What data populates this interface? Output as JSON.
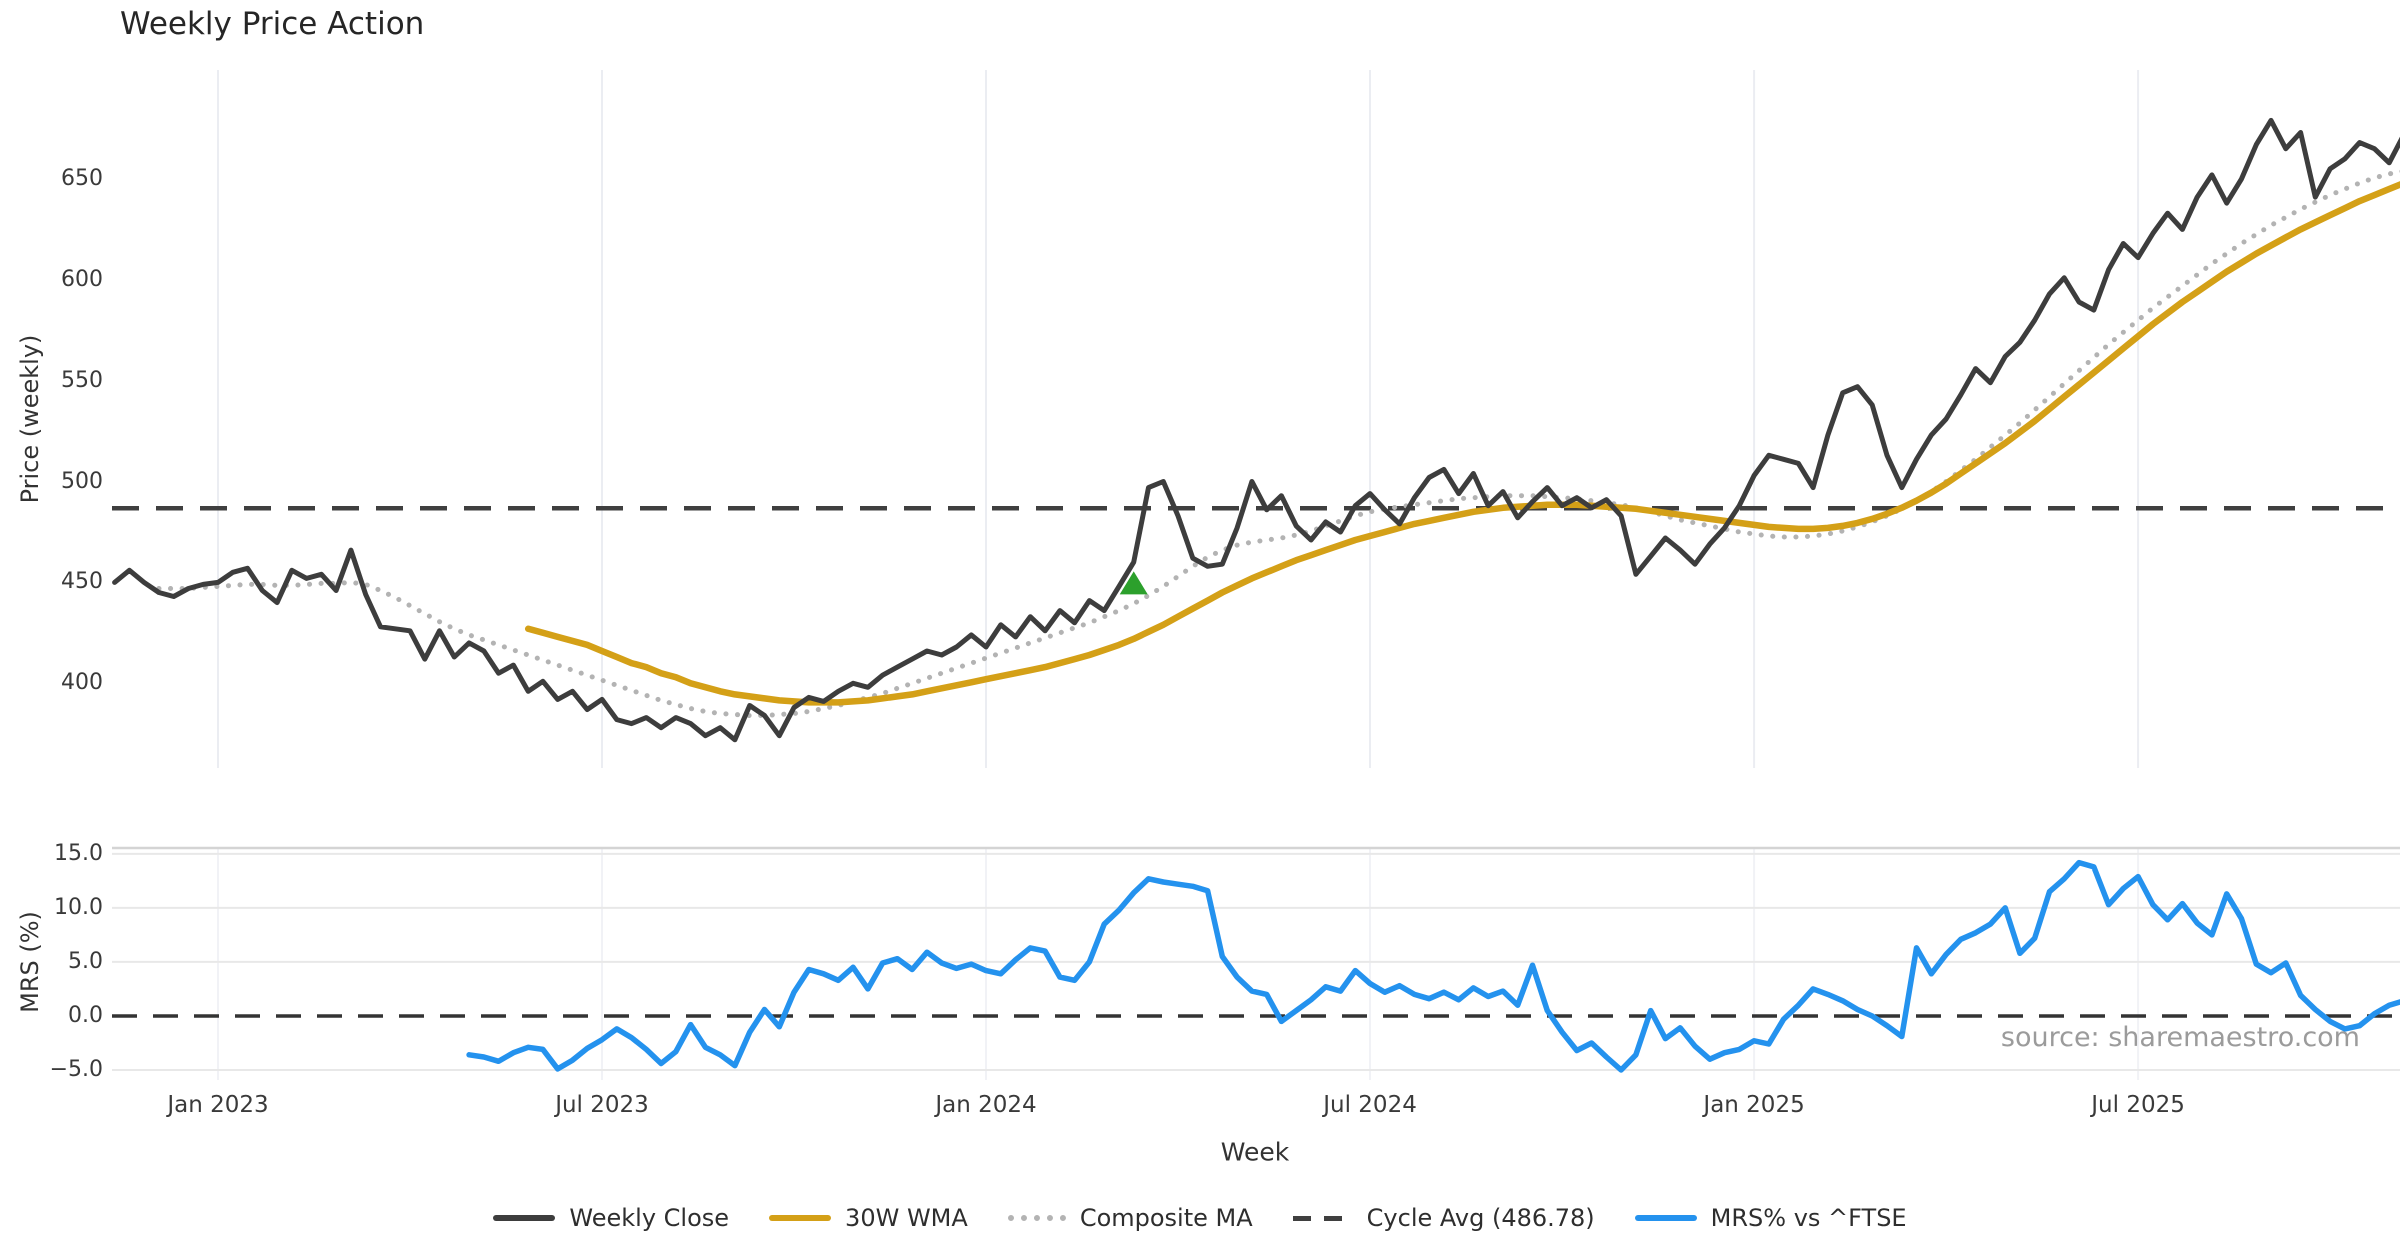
{
  "title": "Weekly Price Action",
  "source_note": "source: sharemaestro.com",
  "axes": {
    "price_axis_label": "Price (weekly)",
    "mrs_axis_label": "MRS (%)",
    "x_axis_label": "Week"
  },
  "legend": {
    "items": [
      {
        "label": "Weekly Close",
        "color": "#3d3d3d",
        "style": "solid"
      },
      {
        "label": "30W WMA",
        "color": "#d4a017",
        "style": "solid"
      },
      {
        "label": "Composite MA",
        "color": "#b3b3b3",
        "style": "dotted"
      },
      {
        "label": "Cycle Avg (486.78)",
        "color": "#3f3f3f",
        "style": "dashed"
      },
      {
        "label": "MRS% vs ^FTSE",
        "color": "#2492ee",
        "style": "solid"
      }
    ]
  },
  "colors": {
    "weekly_close": "#3d3d3d",
    "wma": "#d4a017",
    "composite": "#b3b3b3",
    "cycle_avg": "#3f3f3f",
    "mrs": "#2492ee",
    "signal_marker": "#2ca02c",
    "grid_vertical": "#ebedf2",
    "grid_horizontal": "#e8e8e8",
    "panel_spine": "#d4d4d4",
    "zero_line": "#333333"
  },
  "chart_data": {
    "type": "line",
    "x_unit": "weekly index (one point per week)",
    "n_points": 156,
    "x_ticks": [
      {
        "label": "Jan 2023",
        "index": 7
      },
      {
        "label": "Jul 2023",
        "index": 33
      },
      {
        "label": "Jan 2024",
        "index": 59
      },
      {
        "label": "Jul 2024",
        "index": 85
      },
      {
        "label": "Jan 2025",
        "index": 111
      },
      {
        "label": "Jul 2025",
        "index": 137
      }
    ],
    "panels": [
      {
        "id": "price",
        "ylabel": "Price (weekly)",
        "ylim": [
          358,
          704
        ],
        "yticks": [
          {
            "label": "650",
            "value": 650
          },
          {
            "label": "600",
            "value": 600
          },
          {
            "label": "550",
            "value": 550
          },
          {
            "label": "500",
            "value": 500
          },
          {
            "label": "450",
            "value": 450
          },
          {
            "label": "400",
            "value": 400
          }
        ],
        "hline": {
          "name": "Cycle Avg",
          "value": 486.78,
          "style": "dashed",
          "color": "#3f3f3f"
        },
        "marker": {
          "shape": "triangle-up",
          "color": "#2ca02c",
          "index": 69,
          "value": 449
        },
        "series": [
          {
            "name": "Weekly Close",
            "color": "#3d3d3d",
            "style": "solid",
            "width": 5,
            "start_index": 0,
            "values": [
              450,
              456,
              450,
              445,
              443,
              447,
              449,
              450,
              455,
              457,
              446,
              440,
              456,
              452,
              454,
              446,
              466,
              444,
              428,
              427,
              426,
              412,
              426,
              413,
              420,
              416,
              405,
              409,
              396,
              401,
              392,
              396,
              387,
              392,
              382,
              380,
              383,
              378,
              383,
              380,
              374,
              378,
              372,
              389,
              384,
              374,
              388,
              393,
              391,
              396,
              400,
              398,
              404,
              408,
              412,
              416,
              414,
              418,
              424,
              418,
              429,
              423,
              433,
              426,
              436,
              430,
              441,
              436,
              448,
              460,
              497,
              500,
              483,
              462,
              458,
              459,
              477,
              500,
              486,
              493,
              478,
              471,
              480,
              475,
              488,
              494,
              486,
              479,
              492,
              502,
              506,
              494,
              504,
              488,
              495,
              482,
              490,
              497,
              488,
              492,
              487,
              491,
              483,
              454,
              463,
              472,
              466,
              459,
              469,
              477,
              488,
              503,
              513,
              511,
              509,
              497,
              523,
              544,
              547,
              538,
              513,
              497,
              511,
              523,
              531,
              543,
              556,
              549,
              562,
              569,
              580,
              593,
              601,
              589,
              585,
              605,
              618,
              611,
              623,
              633,
              625,
              641,
              652,
              638,
              650,
              667,
              679,
              665,
              673,
              641,
              655,
              660,
              668,
              665,
              658,
              672
            ]
          },
          {
            "name": "30W WMA",
            "color": "#d4a017",
            "style": "solid",
            "width": 6.5,
            "start_index": 28,
            "values": [
              427,
              425,
              423,
              421,
              419,
              416,
              413,
              410,
              408,
              405,
              403,
              400,
              398,
              396,
              394.5,
              393.5,
              392.5,
              391.5,
              391,
              390.5,
              390.5,
              390.5,
              391,
              391.5,
              392.5,
              393.5,
              394.5,
              396,
              397.5,
              399,
              400.5,
              402,
              403.5,
              405,
              406.5,
              408,
              410,
              412,
              414,
              416.5,
              419,
              422,
              425.5,
              429,
              433,
              437,
              441,
              445,
              448.5,
              452,
              455,
              458,
              461,
              463.5,
              466,
              468.5,
              471,
              473,
              475,
              477,
              479,
              480.5,
              482,
              483.5,
              485,
              486,
              487,
              487.5,
              488,
              488.5,
              488.5,
              488.5,
              488,
              487.5,
              487,
              486.5,
              485.5,
              484.5,
              483.5,
              482.5,
              481.5,
              480.5,
              479.5,
              478.5,
              477.5,
              477,
              476.5,
              476.5,
              477,
              478,
              479.5,
              481.5,
              484,
              487,
              490.5,
              494.5,
              499,
              504,
              509,
              514,
              519,
              524.5,
              530,
              536,
              542,
              548,
              554,
              560,
              566,
              572,
              578,
              583.5,
              589,
              594,
              599,
              604,
              608.5,
              613,
              617,
              621,
              625,
              628.5,
              632,
              635.5,
              639,
              642,
              645,
              648
            ]
          },
          {
            "name": "Composite MA",
            "color": "#b3b3b3",
            "style": "dotted",
            "width": 5,
            "start_index": 3,
            "values": [
              447,
              447,
              447,
              447.5,
              448,
              448.5,
              449,
              449,
              448.5,
              448.5,
              449,
              449.5,
              449.5,
              450,
              449,
              446,
              442.5,
              438.5,
              434.5,
              430.5,
              427,
              424,
              421.5,
              419,
              416.5,
              414,
              411.5,
              409,
              406.5,
              404,
              401.5,
              399,
              396.5,
              394,
              391.5,
              389.5,
              387.5,
              386,
              385,
              384.5,
              384,
              384,
              384.5,
              385,
              386,
              387.5,
              389,
              391,
              393,
              395,
              397.5,
              400,
              402.5,
              405,
              407.5,
              410,
              412.5,
              415,
              417.5,
              420,
              422.5,
              425,
              427.5,
              430,
              433,
              436,
              439.5,
              443.5,
              448,
              453,
              458,
              462.5,
              466,
              468.5,
              470,
              471,
              472,
              473.5,
              475.5,
              478,
              480.5,
              483,
              485,
              486.5,
              487.5,
              488.5,
              489.5,
              490.5,
              491.5,
              492,
              492.5,
              493,
              493,
              493,
              492.5,
              492,
              491.5,
              490.5,
              489.5,
              488.5,
              487,
              485,
              483,
              481,
              479.5,
              478,
              476.5,
              475,
              474,
              473,
              472.5,
              472.5,
              473,
              474,
              475.5,
              477.5,
              480,
              483,
              486.5,
              490.5,
              495,
              500,
              505.5,
              511,
              517,
              523,
              529,
              535.5,
              542,
              548.5,
              555,
              561.5,
              568,
              574,
              580,
              586,
              591.5,
              597,
              602.5,
              608,
              613,
              618,
              622.5,
              627,
              631,
              635,
              638.5,
              642,
              645,
              648,
              650.5,
              652.5,
              654
            ]
          }
        ]
      },
      {
        "id": "mrs",
        "ylabel": "MRS (%)",
        "ylim": [
          -5.93,
          15.55
        ],
        "yticks": [
          {
            "label": "15.0",
            "value": 15
          },
          {
            "label": "10.0",
            "value": 10
          },
          {
            "label": "5.0",
            "value": 5
          },
          {
            "label": "0.0",
            "value": 0
          },
          {
            "label": "−5.0",
            "value": -5
          }
        ],
        "hline": {
          "name": "zero line",
          "value": 0,
          "style": "dashed",
          "color": "#333333"
        },
        "series": [
          {
            "name": "MRS% vs ^FTSE",
            "color": "#2492ee",
            "style": "solid",
            "width": 5.5,
            "start_index": 24,
            "values": [
              -3.6,
              -3.8,
              -4.2,
              -3.4,
              -2.9,
              -3.1,
              -4.9,
              -4.1,
              -3.0,
              -2.2,
              -1.2,
              -2.0,
              -3.1,
              -4.4,
              -3.3,
              -0.8,
              -2.9,
              -3.6,
              -4.6,
              -1.5,
              0.6,
              -1.0,
              2.2,
              4.3,
              3.9,
              3.3,
              4.5,
              2.5,
              4.9,
              5.3,
              4.3,
              5.9,
              4.9,
              4.4,
              4.8,
              4.2,
              3.9,
              5.2,
              6.3,
              6.0,
              3.6,
              3.3,
              5.0,
              8.5,
              9.8,
              11.4,
              12.7,
              12.4,
              12.2,
              12.0,
              11.6,
              5.5,
              3.6,
              2.3,
              2.0,
              -0.5,
              0.5,
              1.5,
              2.7,
              2.3,
              4.2,
              3.0,
              2.2,
              2.8,
              2.0,
              1.6,
              2.2,
              1.5,
              2.6,
              1.8,
              2.3,
              1.0,
              4.7,
              0.5,
              -1.5,
              -3.2,
              -2.5,
              -3.8,
              -5.0,
              -3.6,
              0.5,
              -2.1,
              -1.1,
              -2.8,
              -4.0,
              -3.4,
              -3.1,
              -2.3,
              -2.6,
              -0.3,
              1.0,
              2.5,
              2.0,
              1.4,
              0.6,
              0.0,
              -0.9,
              -1.9,
              6.3,
              3.9,
              5.7,
              7.1,
              7.7,
              8.5,
              10.0,
              5.8,
              7.2,
              11.5,
              12.7,
              14.2,
              13.8,
              10.3,
              11.8,
              12.9,
              10.3,
              8.9,
              10.4,
              8.6,
              7.5,
              11.3,
              9.0,
              4.8,
              4.0,
              4.9,
              1.9,
              0.6,
              -0.5,
              -1.2,
              -0.9,
              0.2,
              1.0,
              1.4
            ]
          }
        ]
      }
    ]
  }
}
